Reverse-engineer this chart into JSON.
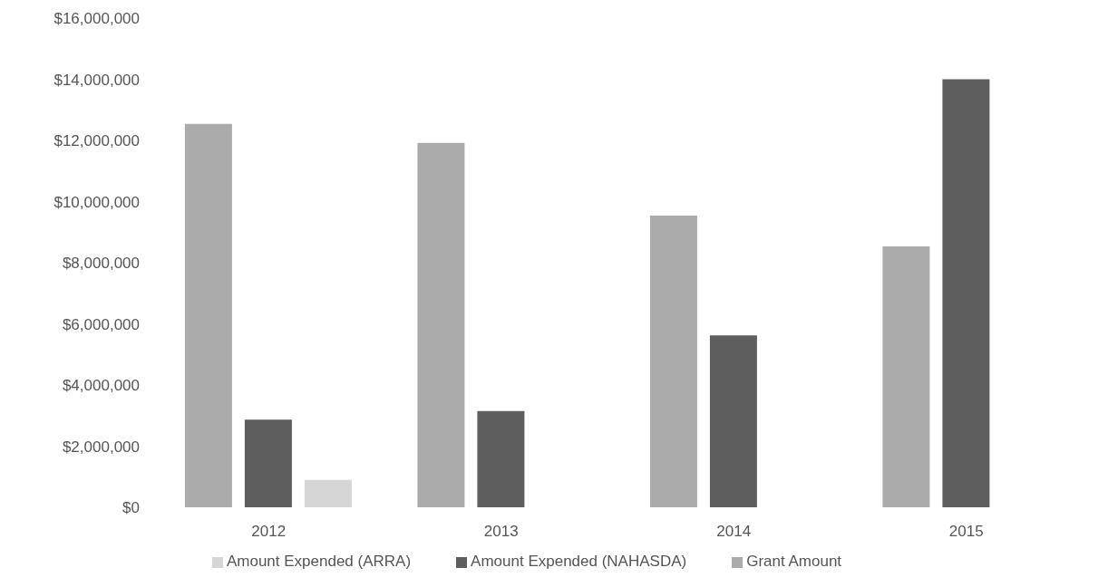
{
  "chart_data": {
    "type": "bar",
    "categories": [
      "2012",
      "2013",
      "2014",
      "2015"
    ],
    "series": [
      {
        "name": "Grant Amount",
        "color": "#ababab",
        "values": [
          12540000,
          11920000,
          9540000,
          8530000
        ]
      },
      {
        "name": "Amount Expended (NAHASDA)",
        "color": "#5e5e5e",
        "values": [
          2870000,
          3150000,
          5620000,
          14000000
        ]
      },
      {
        "name": "Amount Expended (ARRA)",
        "color": "#d6d6d6",
        "values": [
          900000,
          null,
          null,
          null
        ]
      }
    ],
    "ylim": [
      0,
      16000000
    ],
    "yticks": [
      {
        "value": 0,
        "label": "$0"
      },
      {
        "value": 2000000,
        "label": "$2,000,000"
      },
      {
        "value": 4000000,
        "label": "$4,000,000"
      },
      {
        "value": 6000000,
        "label": "$6,000,000"
      },
      {
        "value": 8000000,
        "label": "$8,000,000"
      },
      {
        "value": 10000000,
        "label": "$10,000,000"
      },
      {
        "value": 12000000,
        "label": "$12,000,000"
      },
      {
        "value": 14000000,
        "label": "$14,000,000"
      },
      {
        "value": 16000000,
        "label": "$16,000,000"
      }
    ],
    "grid": false,
    "legend": "bottom"
  }
}
